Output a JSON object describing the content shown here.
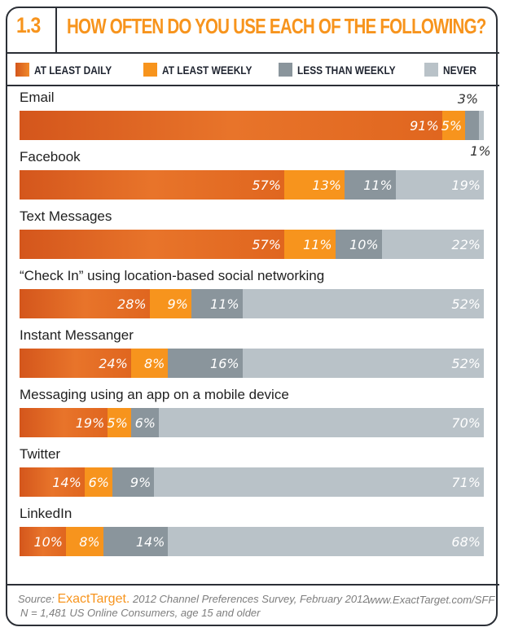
{
  "chart_data": {
    "type": "bar",
    "orientation": "horizontal-stacked-100",
    "number": "1.3",
    "title": "HOW OFTEN DO YOU USE EACH OF THE FOLLOWING?",
    "legend": [
      "AT LEAST DAILY",
      "AT LEAST WEEKLY",
      "LESS THAN WEEKLY",
      "NEVER"
    ],
    "colors": [
      "#e0661f",
      "#f7941d",
      "#8a959c",
      "#b9c2c8"
    ],
    "categories": [
      "Email",
      "Facebook",
      "Text Messages",
      "“Check In” using location-based social networking",
      "Instant Messanger",
      "Messaging using an app on a mobile device",
      "Twitter",
      "LinkedIn"
    ],
    "series": [
      {
        "name": "AT LEAST DAILY",
        "values": [
          91,
          57,
          57,
          28,
          24,
          19,
          14,
          10
        ]
      },
      {
        "name": "AT LEAST WEEKLY",
        "values": [
          5,
          13,
          11,
          9,
          8,
          5,
          6,
          8
        ]
      },
      {
        "name": "LESS THAN WEEKLY",
        "values": [
          3,
          11,
          10,
          11,
          16,
          6,
          9,
          14
        ]
      },
      {
        "name": "NEVER",
        "values": [
          1,
          19,
          22,
          52,
          52,
          70,
          71,
          68
        ]
      }
    ],
    "unit": "%"
  },
  "footer": {
    "source_prefix": "Source:",
    "brand": "ExactTarget.",
    "source_rest": "2012 Channel Preferences Survey, February 2012",
    "url": "www.ExactTarget.com/SFF",
    "sample": "N = 1,481  US Online Consumers, age 15 and older"
  }
}
